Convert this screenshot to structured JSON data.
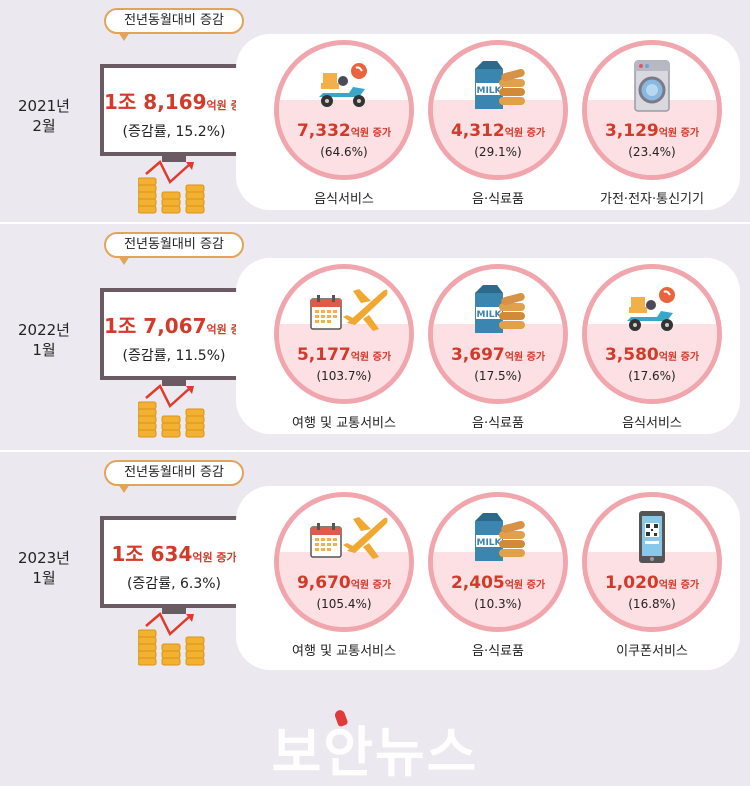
{
  "rows": [
    {
      "year_line1": "2021년",
      "year_line2": "2월",
      "tag": "전년동월대비 증감",
      "total_value": "1조 8,169",
      "total_unit": "억원 증가",
      "rate": "(증감률, 15.2%)",
      "items": [
        {
          "value": "7,332",
          "unit": "억원 증가",
          "pct": "(64.6%)",
          "label": "음식서비스",
          "icon": "delivery-scooter-icon"
        },
        {
          "value": "4,312",
          "unit": "억원 증가",
          "pct": "(29.1%)",
          "label": "음·식료품",
          "icon": "milk-bread-icon"
        },
        {
          "value": "3,129",
          "unit": "억원 증가",
          "pct": "(23.4%)",
          "label": "가전·전자·통신기기",
          "icon": "washing-machine-icon"
        }
      ]
    },
    {
      "year_line1": "2022년",
      "year_line2": "1월",
      "tag": "전년동월대비 증감",
      "total_value": "1조 7,067",
      "total_unit": "억원 증가",
      "rate": "(증감률, 11.5%)",
      "items": [
        {
          "value": "5,177",
          "unit": "억원 증가",
          "pct": "(103.7%)",
          "label": "여행 및 교통서비스",
          "icon": "calendar-airplane-icon"
        },
        {
          "value": "3,697",
          "unit": "억원 증가",
          "pct": "(17.5%)",
          "label": "음·식료품",
          "icon": "milk-bread-icon"
        },
        {
          "value": "3,580",
          "unit": "억원 증가",
          "pct": "(17.6%)",
          "label": "음식서비스",
          "icon": "delivery-scooter-icon"
        }
      ]
    },
    {
      "year_line1": "2023년",
      "year_line2": "1월",
      "tag": "전년동월대비 증감",
      "total_value": "1조 634",
      "total_unit": "억원 증가",
      "rate": "(증감률, 6.3%)",
      "items": [
        {
          "value": "9,670",
          "unit": "억원 증가",
          "pct": "(105.4%)",
          "label": "여행 및 교통서비스",
          "icon": "calendar-airplane-icon"
        },
        {
          "value": "2,405",
          "unit": "억원 증가",
          "pct": "(10.3%)",
          "label": "음·식료품",
          "icon": "milk-bread-icon"
        },
        {
          "value": "1,020",
          "unit": "억원 증가",
          "pct": "(16.8%)",
          "label": "이쿠폰서비스",
          "icon": "mobile-coupon-icon"
        }
      ]
    }
  ],
  "logo": "보안뉴스",
  "colors": {
    "accent_red": "#d23a2a",
    "circle_border": "#f1a6ae",
    "circle_fill": "#fde0e3",
    "tag_border": "#e3a45a"
  }
}
